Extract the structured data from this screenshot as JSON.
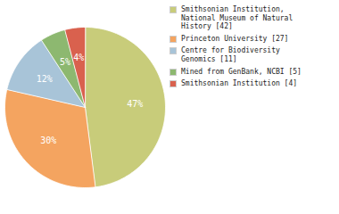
{
  "chart_data": {
    "type": "pie",
    "categories": [
      "Smithsonian Institution,\nNational Museum of Natural\nHistory [42]",
      "Princeton University [27]",
      "Centre for Biodiversity\nGenomics [11]",
      "Mined from GenBank, NCBI [5]",
      "Smithsonian Institution [4]"
    ],
    "values": [
      47,
      30,
      12,
      5,
      4
    ],
    "value_labels": [
      "47%",
      "30%",
      "12%",
      "5%",
      "4%"
    ],
    "colors": [
      "#c8cc7a",
      "#f4a460",
      "#a8c4d8",
      "#8db870",
      "#d9614e"
    ],
    "data_labels": true,
    "legend": "right"
  }
}
